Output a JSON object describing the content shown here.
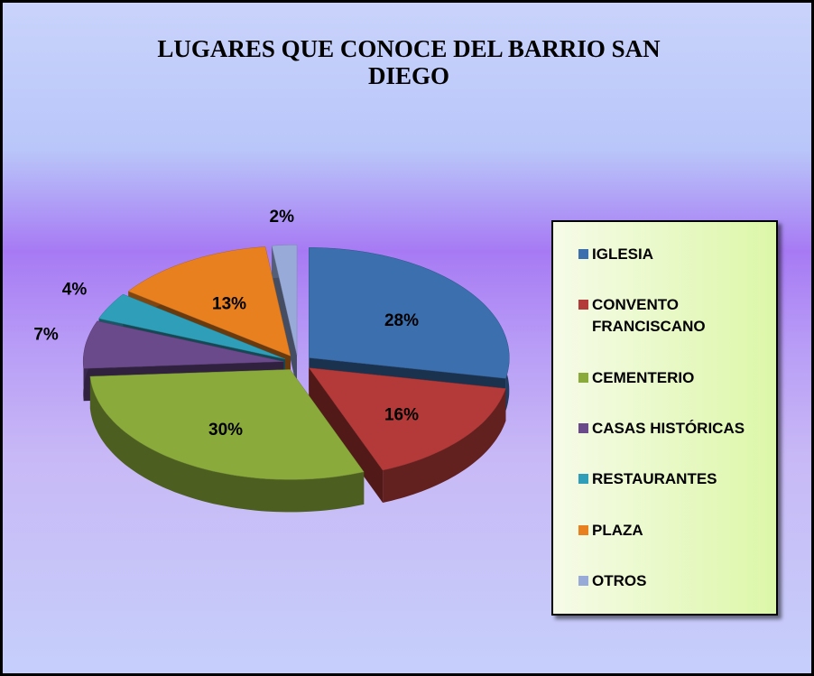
{
  "chart_data": {
    "type": "pie",
    "title": "LUGARES QUE CONOCE DEL BARRIO SAN DIEGO",
    "categories": [
      "IGLESIA",
      "CONVENTO FRANCISCANO",
      "CEMENTERIO",
      "CASAS HISTÓRICAS",
      "RESTAURANTES",
      "PLAZA",
      "OTROS"
    ],
    "values": [
      28,
      16,
      30,
      7,
      4,
      13,
      2
    ],
    "value_labels": [
      "28%",
      "16%",
      "30%",
      "7%",
      "4%",
      "13%",
      "2%"
    ],
    "colors": [
      "#3b6fae",
      "#b33a38",
      "#8aab3b",
      "#6b4a8c",
      "#2f9fb9",
      "#e8801f",
      "#98aad8"
    ],
    "legend": "right"
  }
}
